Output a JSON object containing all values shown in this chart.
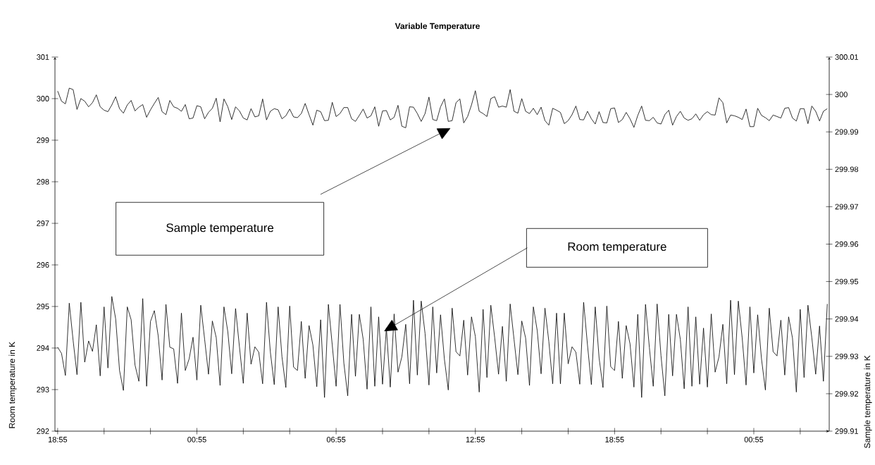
{
  "chart_data": {
    "type": "line",
    "title": "Variable Temperature",
    "ylabel": "Room temperature in K",
    "y2label": "Sample temperature in K",
    "categories": [
      "18:55",
      null,
      null,
      null,
      null,
      null,
      null,
      null,
      null,
      null,
      null,
      null,
      null,
      null,
      null,
      null,
      null,
      null,
      null,
      null,
      null,
      null,
      null,
      null,
      null,
      null,
      null,
      null,
      null,
      null,
      null,
      null,
      null,
      null,
      null,
      null,
      "00:55",
      null,
      null,
      null,
      null,
      null,
      null,
      null,
      null,
      null,
      null,
      null,
      null,
      null,
      null,
      null,
      null,
      null,
      null,
      null,
      null,
      null,
      null,
      null,
      null,
      null,
      null,
      null,
      null,
      null,
      null,
      null,
      null,
      null,
      null,
      null,
      "06:55",
      null,
      null,
      null,
      null,
      null,
      null,
      null,
      null,
      null,
      null,
      null,
      null,
      null,
      null,
      null,
      null,
      null,
      null,
      null,
      null,
      null,
      null,
      null,
      null,
      null,
      null,
      null,
      null,
      null,
      null,
      null,
      null,
      null,
      null,
      null,
      "12:55",
      null,
      null,
      null,
      null,
      null,
      null,
      null,
      null,
      null,
      null,
      null,
      null,
      null,
      null,
      null,
      null,
      null,
      null,
      null,
      null,
      null,
      null,
      null,
      null,
      null,
      null,
      null,
      null,
      null,
      null,
      null,
      null,
      null,
      null,
      null,
      "18:55",
      null,
      null,
      null,
      null,
      null,
      null,
      null,
      null,
      null,
      null,
      null,
      null,
      null,
      null,
      null,
      null,
      null,
      null,
      null,
      null,
      null,
      null,
      null,
      null,
      null,
      null,
      null,
      null,
      null,
      null,
      null,
      null,
      null,
      null,
      null,
      "00:55",
      null,
      null,
      null,
      null,
      null,
      null,
      null,
      null,
      null,
      null,
      null,
      null,
      null,
      null,
      null,
      null,
      null,
      null,
      null
    ],
    "series": [
      {
        "color": "#000000",
        "axis": "y",
        "values": [
          294.02,
          293.87,
          293.34,
          295.08,
          294.18,
          293.36,
          295.1,
          293.66,
          294.17,
          293.92,
          294.56,
          293.33,
          294.99,
          293.52,
          295.24,
          294.7,
          293.46,
          292.98,
          294.99,
          294.68,
          293.59,
          293.2,
          295.19,
          293.08,
          294.64,
          294.9,
          294.29,
          293.23,
          295.05,
          294.02,
          293.98,
          293.15,
          294.84,
          293.46,
          293.74,
          294.26,
          293.23,
          295.03,
          294.21,
          293.37,
          294.65,
          294.25,
          293.1,
          294.99,
          294.39,
          293.38,
          294.95,
          294.03,
          293.15,
          294.84,
          293.61,
          294.03,
          293.9,
          293.14,
          295.1,
          293.9,
          293.12,
          294.99,
          293.79,
          293.05,
          295.01,
          293.54,
          293.46,
          294.64,
          293.27,
          294.54,
          294.07,
          293.07,
          294.68,
          292.81,
          295.05,
          294.07,
          293.08,
          295.05,
          293.64,
          292.85,
          294.81,
          293.32,
          294.81,
          294.21,
          293.01,
          294.99,
          293.08,
          294.75,
          293.13,
          294.48,
          293.06,
          294.82,
          293.42,
          293.79,
          294.57,
          293.14,
          295.15,
          293.35,
          295.13,
          294.35,
          293.11,
          294.99,
          293.4,
          294.8,
          293.73,
          292.99,
          294.96,
          293.91,
          293.81,
          294.67,
          293.35,
          294.75,
          294.28,
          292.94,
          294.93,
          293.29,
          295.03,
          294.25,
          293.37,
          294.52,
          293.2,
          295.06,
          294.21,
          293.36,
          294.65,
          294.24,
          293.1,
          294.99,
          294.42,
          293.38,
          294.96,
          294.16,
          293.14,
          294.84,
          293.14,
          294.84,
          293.62,
          294.03,
          293.9,
          293.13,
          295.1,
          294.07,
          293.12,
          294.99,
          293.76,
          293.05,
          295.01,
          293.55,
          293.46,
          294.64,
          293.27,
          294.54,
          294.1,
          293.06,
          294.81,
          292.81,
          295.05,
          294.01,
          293.08,
          295.06,
          293.82,
          292.85,
          294.81,
          293.33,
          294.81,
          294.21,
          293.02,
          294.99,
          293.08,
          294.75,
          293.13,
          294.48,
          293.06,
          294.82,
          293.42,
          293.79,
          294.57,
          293.14,
          295.15,
          293.36,
          295.13,
          294.24,
          293.11,
          294.99,
          293.4,
          294.8,
          293.73,
          292.99,
          294.96,
          293.91,
          293.81,
          294.67,
          293.35,
          294.75,
          294.24,
          292.94,
          294.93,
          293.29,
          295.03,
          294.25,
          293.37,
          294.53,
          293.2,
          295.06
        ]
      },
      {
        "color": "#000000",
        "axis": "y2",
        "values": [
          300.0009,
          299.9982,
          299.9975,
          300.0017,
          300.0013,
          299.996,
          299.9989,
          299.9982,
          299.9967,
          299.9978,
          299.9999,
          299.9967,
          299.9958,
          299.9954,
          299.9972,
          299.9994,
          299.9962,
          299.995,
          299.9972,
          299.9984,
          299.9956,
          299.9966,
          299.9973,
          299.9939,
          299.9959,
          299.9976,
          299.9992,
          299.9954,
          299.9946,
          299.9984,
          299.9967,
          299.9963,
          299.9955,
          299.9973,
          299.9935,
          299.9937,
          299.997,
          299.9967,
          299.9935,
          299.9952,
          299.9963,
          299.999,
          299.9927,
          299.9988,
          299.9967,
          299.9933,
          299.9967,
          299.9956,
          299.9937,
          299.9932,
          299.9962,
          299.994,
          299.9943,
          299.9988,
          299.9932,
          299.9955,
          299.9962,
          299.9959,
          299.9935,
          299.9943,
          299.9961,
          299.994,
          299.9938,
          299.9949,
          299.9976,
          299.9946,
          299.9918,
          299.9958,
          299.9954,
          299.993,
          299.9931,
          299.9979,
          299.9941,
          299.9949,
          299.9965,
          299.9965,
          299.9935,
          299.9928,
          299.9944,
          299.9961,
          299.9937,
          299.9943,
          299.9967,
          299.9915,
          299.9956,
          299.9957,
          299.9932,
          299.9939,
          299.9971,
          299.9915,
          299.9911,
          299.9967,
          299.9966,
          299.9949,
          299.9928,
          299.9949,
          299.9993,
          299.9933,
          299.993,
          299.9967,
          299.9988,
          299.9928,
          299.993,
          299.9978,
          299.9988,
          299.9924,
          299.9941,
          299.9972,
          300.001,
          299.9955,
          299.9949,
          299.9941,
          299.9989,
          299.9994,
          299.9966,
          299.9969,
          299.9966,
          300.0013,
          299.9955,
          299.995,
          299.9989,
          299.9955,
          299.9949,
          299.9963,
          299.9946,
          299.9966,
          299.993,
          299.9918,
          299.9963,
          299.9958,
          299.9952,
          299.9922,
          299.993,
          299.9946,
          299.9969,
          299.9933,
          299.9932,
          299.9955,
          299.9935,
          299.9921,
          299.9954,
          299.9925,
          299.9924,
          299.9962,
          299.9964,
          299.9925,
          299.9933,
          299.9952,
          299.9935,
          299.9912,
          299.9944,
          299.9969,
          299.9931,
          299.993,
          299.9939,
          299.9924,
          299.9921,
          299.9946,
          299.9958,
          299.9918,
          299.9941,
          299.9955,
          299.9937,
          299.9931,
          299.9935,
          299.9948,
          299.9931,
          299.9946,
          299.9954,
          299.9946,
          299.9945,
          299.9991,
          299.9978,
          299.9924,
          299.9945,
          299.9943,
          299.9939,
          299.9933,
          299.9961,
          299.9914,
          299.9914,
          299.9963,
          299.9944,
          299.9938,
          299.993,
          299.9945,
          299.9941,
          299.9937,
          299.9963,
          299.9965,
          299.9937,
          299.9929,
          299.9962,
          299.9962,
          299.9922,
          299.9969,
          299.9955,
          299.9929,
          299.9955,
          299.9962
        ]
      }
    ],
    "ylim": [
      292,
      301
    ],
    "yticks": [
      292,
      293,
      294,
      295,
      296,
      297,
      298,
      299,
      300,
      301
    ],
    "y2lim": [
      299.91,
      300.01
    ],
    "y2ticks": [
      299.91,
      299.92,
      299.93,
      299.94,
      299.95,
      299.96,
      299.97,
      299.98,
      299.99,
      300,
      300.01
    ],
    "annotations": [
      "Sample temperature",
      "Room temperature"
    ]
  }
}
